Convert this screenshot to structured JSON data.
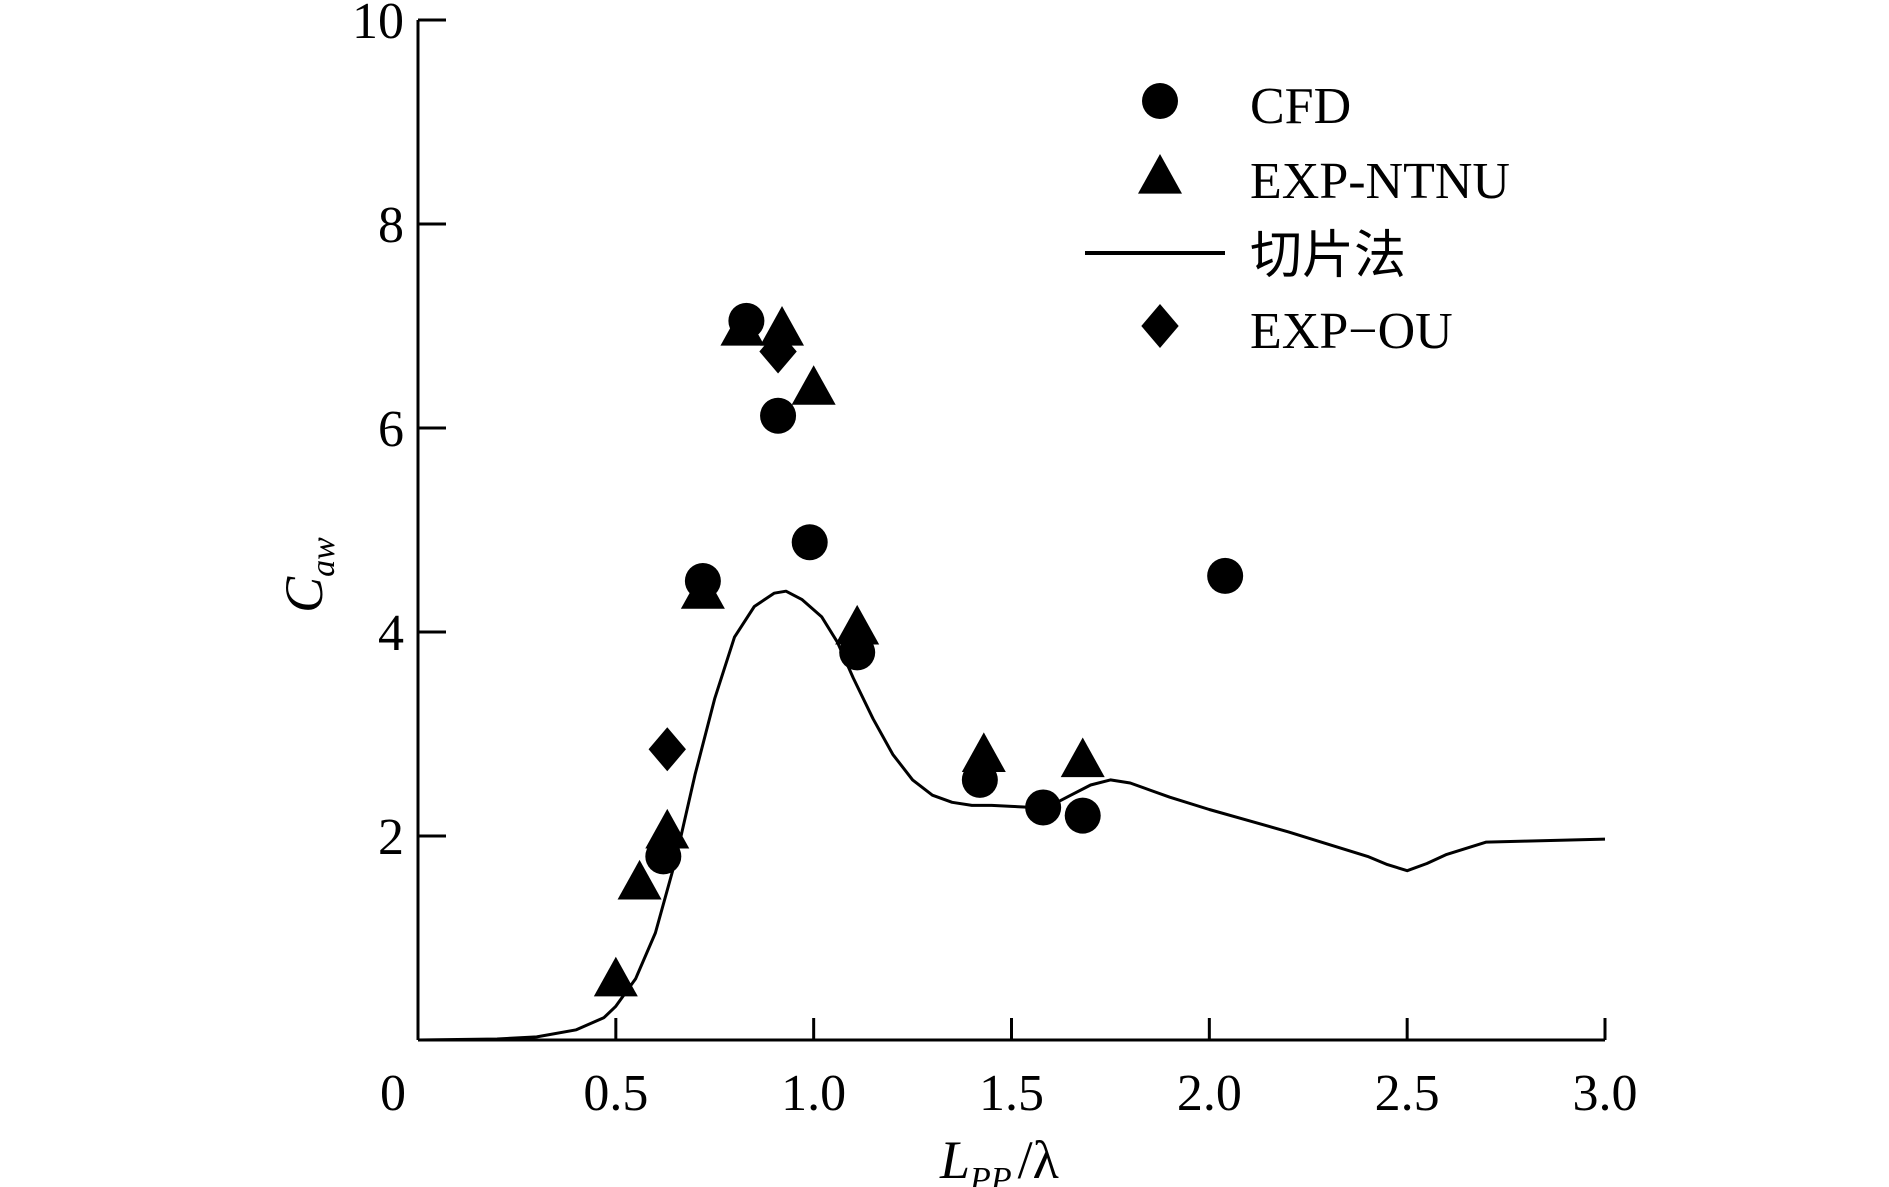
{
  "chart_data": {
    "type": "scatter",
    "title": "",
    "xlabel": {
      "main": "L",
      "sub": "PP",
      "suffix": "/λ"
    },
    "ylabel": {
      "main": "C",
      "sub": "aw"
    },
    "xlim": [
      0,
      3.0
    ],
    "ylim": [
      0,
      10
    ],
    "x_ticks": [
      "0",
      "0.5",
      "1.0",
      "1.5",
      "2.0",
      "2.5",
      "3.0"
    ],
    "x_tick_values": [
      0,
      0.5,
      1.0,
      1.5,
      2.0,
      2.5,
      3.0
    ],
    "y_ticks": [
      "2",
      "4",
      "6",
      "8",
      "10"
    ],
    "y_tick_values": [
      2,
      4,
      6,
      8,
      10
    ],
    "grid": false,
    "legend_position": "top-right",
    "series": [
      {
        "name": "CFD",
        "marker": "circle",
        "x": [
          0.62,
          0.72,
          0.83,
          0.91,
          0.99,
          1.11,
          1.42,
          1.58,
          1.68,
          2.04
        ],
        "y": [
          1.8,
          4.5,
          7.05,
          6.12,
          4.88,
          3.8,
          2.55,
          2.28,
          2.2,
          4.55
        ]
      },
      {
        "name": "EXP-NTNU",
        "marker": "triangle",
        "x": [
          0.5,
          0.56,
          0.63,
          0.72,
          0.82,
          0.92,
          1.0,
          1.11,
          1.43,
          1.68
        ],
        "y": [
          0.6,
          1.55,
          2.05,
          4.4,
          6.98,
          6.98,
          6.4,
          4.05,
          2.8,
          2.75
        ]
      },
      {
        "name": "切片法",
        "marker": "line",
        "x": [
          0,
          0.2,
          0.3,
          0.4,
          0.47,
          0.5,
          0.55,
          0.6,
          0.65,
          0.7,
          0.75,
          0.8,
          0.85,
          0.9,
          0.93,
          0.97,
          1.02,
          1.06,
          1.1,
          1.15,
          1.2,
          1.25,
          1.3,
          1.35,
          1.4,
          1.45,
          1.5,
          1.55,
          1.6,
          1.65,
          1.7,
          1.75,
          1.8,
          1.85,
          1.9,
          2.0,
          2.1,
          2.2,
          2.3,
          2.4,
          2.45,
          2.5,
          2.55,
          2.6,
          2.7,
          2.8,
          2.9,
          3.0
        ],
        "y": [
          0,
          0.01,
          0.03,
          0.1,
          0.22,
          0.33,
          0.6,
          1.05,
          1.75,
          2.6,
          3.35,
          3.95,
          4.25,
          4.38,
          4.4,
          4.32,
          4.15,
          3.9,
          3.55,
          3.15,
          2.8,
          2.55,
          2.4,
          2.33,
          2.3,
          2.3,
          2.29,
          2.28,
          2.3,
          2.4,
          2.5,
          2.55,
          2.52,
          2.45,
          2.38,
          2.26,
          2.15,
          2.04,
          1.92,
          1.8,
          1.72,
          1.66,
          1.73,
          1.82,
          1.94,
          1.95,
          1.96,
          1.97
        ]
      },
      {
        "name": "EXP−OU",
        "marker": "diamond",
        "x": [
          0.63,
          0.91
        ],
        "y": [
          2.85,
          6.75
        ]
      }
    ]
  }
}
